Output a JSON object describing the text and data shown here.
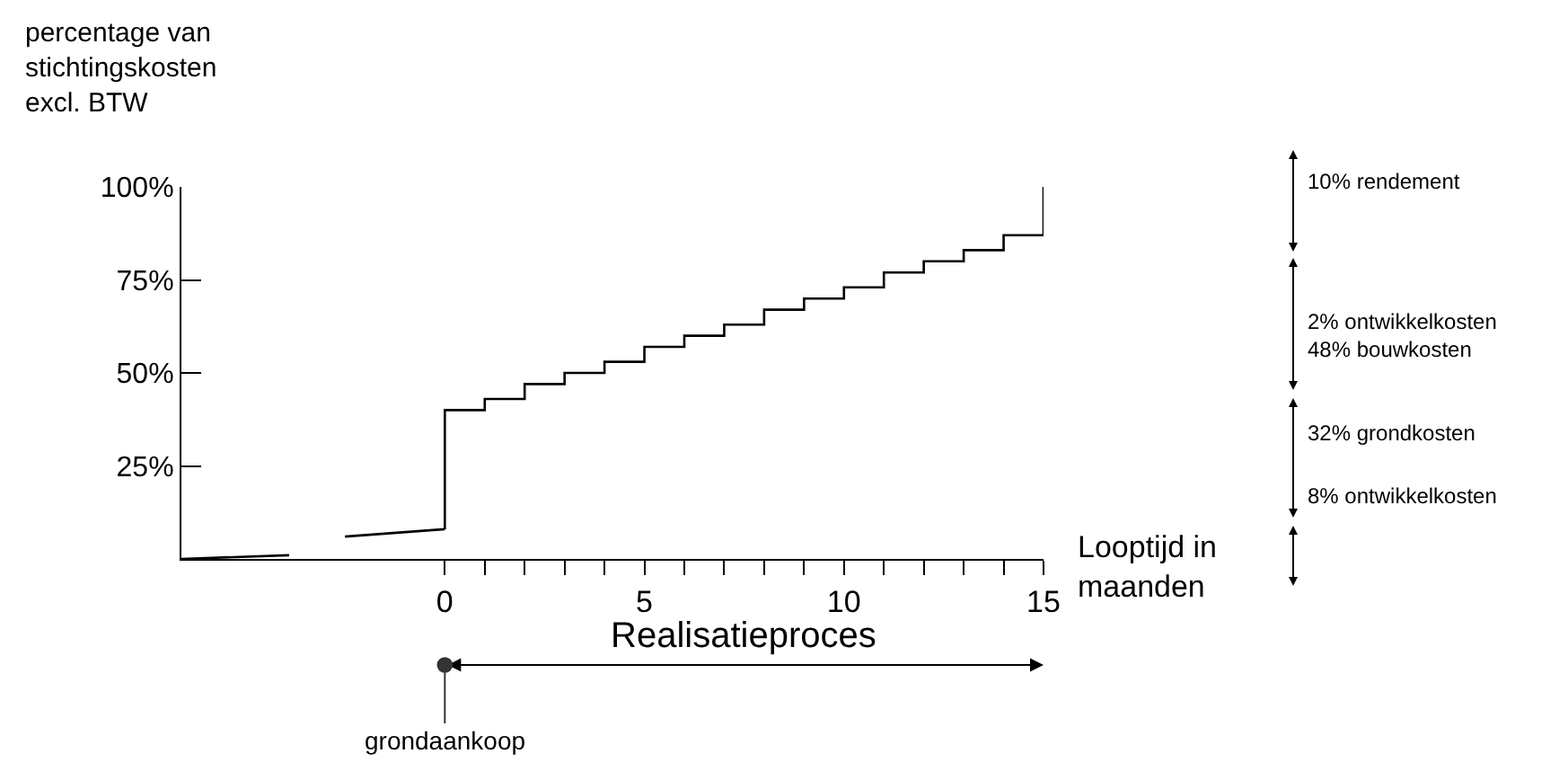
{
  "chart_data": {
    "type": "line",
    "ylabel": "percentage van\nstichtingskosten\nexcl. BTW",
    "xlabel": "Looptijd in\nmaanden",
    "series": [
      {
        "color": "#000000",
        "x": [
          -6.6,
          -3.9,
          -3.2,
          -2.5,
          0
        ],
        "values": [
          0,
          1,
          null,
          6,
          8
        ]
      },
      {
        "type": "step",
        "color": "#000000",
        "x": [
          0,
          0,
          1,
          2,
          3,
          4,
          5,
          6,
          7,
          8,
          9,
          10,
          11,
          12,
          13,
          14,
          15
        ],
        "values": [
          8,
          40,
          43,
          47,
          50,
          53,
          57,
          60,
          63,
          67,
          70,
          73,
          77,
          80,
          83,
          87,
          100
        ]
      }
    ],
    "xlim": [
      -6.6,
      15
    ],
    "xticks": [
      0,
      {
        "value": 1,
        "label": null
      },
      {
        "value": 2,
        "label": null
      },
      {
        "value": 3,
        "label": null
      },
      {
        "value": 4,
        "label": null
      },
      5,
      {
        "value": 6,
        "label": null
      },
      {
        "value": 7,
        "label": null
      },
      {
        "value": 8,
        "label": null
      },
      {
        "value": 9,
        "label": null
      },
      10,
      {
        "value": 11,
        "label": null
      },
      {
        "value": 12,
        "label": null
      },
      {
        "value": 13,
        "label": null
      },
      {
        "value": 14,
        "label": null
      },
      15
    ],
    "ylim": [
      0,
      100
    ],
    "yticks": [
      {
        "value": 25,
        "label": "25%"
      },
      {
        "value": 50,
        "label": "50%"
      },
      {
        "value": 75,
        "label": "75%"
      },
      {
        "value": 100,
        "label": "100%"
      }
    ],
    "annotations": [
      "10% rendement",
      "2% ontwikkelkosten\n48% bouwkosten",
      "32% grondkosten",
      "8% ontwikkelkosten",
      "Realisatieproces",
      {
        "text": "grondaankoop",
        "x": 0
      }
    ],
    "marker": "none",
    "line_style": "solid"
  }
}
